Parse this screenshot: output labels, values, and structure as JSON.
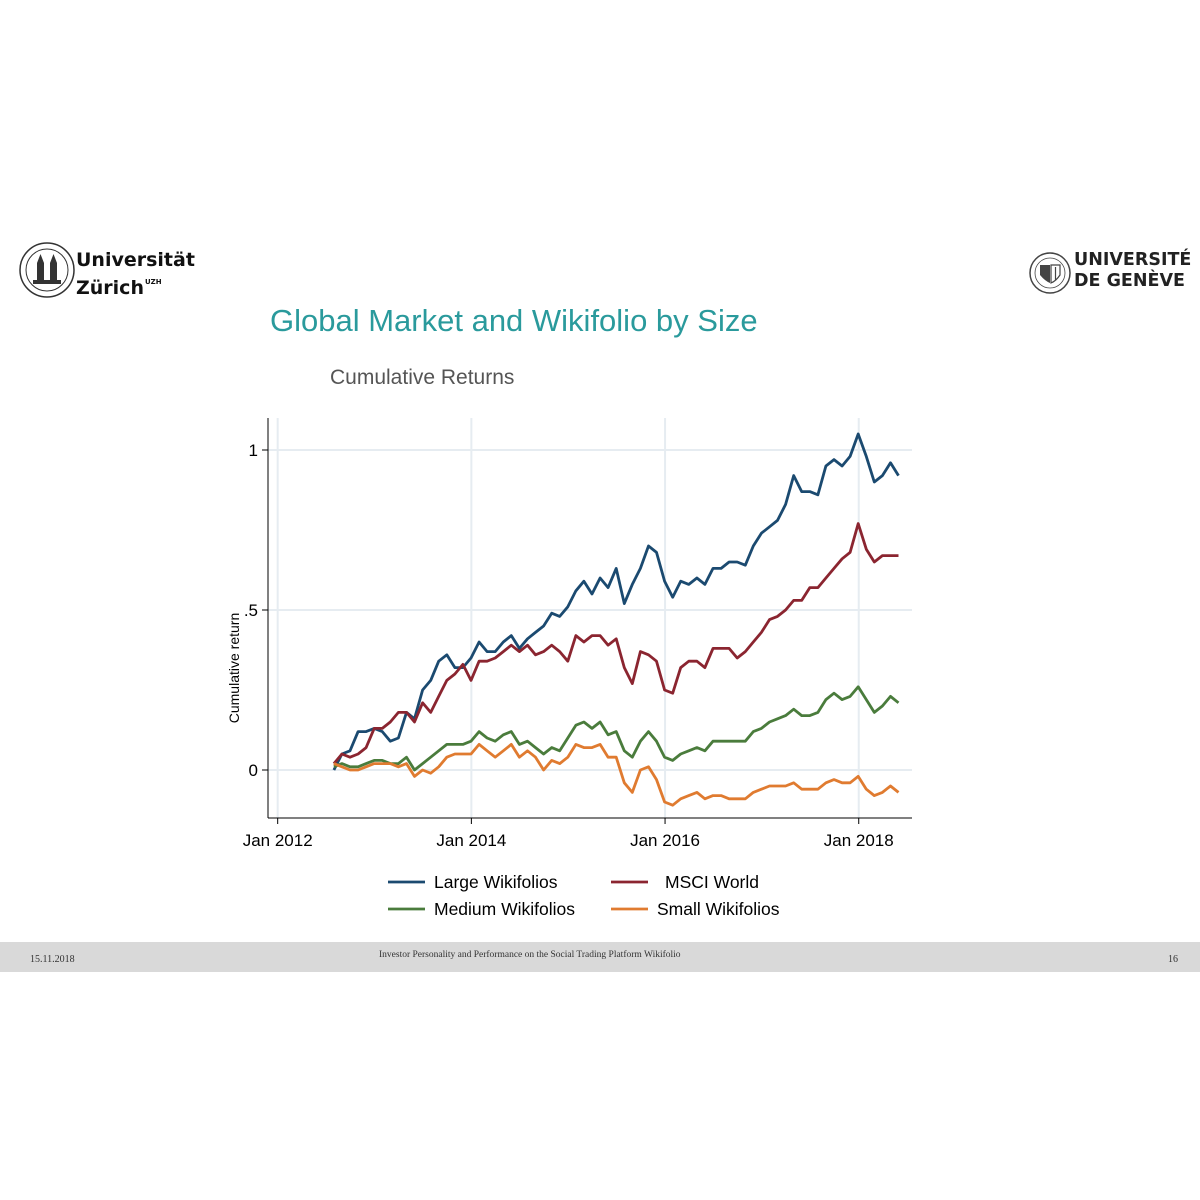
{
  "logos": {
    "left": {
      "line1": "Universität",
      "line2": "Zürich",
      "superscript": "UZH"
    },
    "right": {
      "line1": "UNIVERSITÉ",
      "line2": "DE GENÈVE"
    }
  },
  "slide_title": "Global Market and Wikifolio by Size",
  "footer": {
    "date": "15.11.2018",
    "title": "Investor Personality and Performance on the Social Trading Platform Wikifolio",
    "page": "16"
  },
  "chart_data": {
    "type": "line",
    "title": "Cumulative Returns",
    "xlabel": "",
    "ylabel": "Cumulative return",
    "xlim": [
      2011.9,
      2018.55
    ],
    "ylim": [
      -0.15,
      1.1
    ],
    "x_ticks": [
      2012,
      2014,
      2016,
      2018
    ],
    "x_tick_labels": [
      "Jan 2012",
      "Jan 2014",
      "Jan 2016",
      "Jan 2018"
    ],
    "y_ticks": [
      0,
      0.5,
      1
    ],
    "y_tick_labels": [
      "0",
      ".5",
      "1"
    ],
    "grid": true,
    "legend_position": "bottom",
    "x_start": 2012.58,
    "x_step": 0.0833,
    "series": [
      {
        "name": "Large Wikifolios",
        "color": "#1b4a70",
        "values": [
          0.0,
          0.05,
          0.06,
          0.12,
          0.12,
          0.13,
          0.12,
          0.09,
          0.1,
          0.18,
          0.16,
          0.25,
          0.28,
          0.34,
          0.36,
          0.32,
          0.32,
          0.35,
          0.4,
          0.37,
          0.37,
          0.4,
          0.42,
          0.38,
          0.41,
          0.43,
          0.45,
          0.49,
          0.48,
          0.51,
          0.56,
          0.59,
          0.55,
          0.6,
          0.57,
          0.63,
          0.52,
          0.58,
          0.63,
          0.7,
          0.68,
          0.59,
          0.54,
          0.59,
          0.58,
          0.6,
          0.58,
          0.63,
          0.63,
          0.65,
          0.65,
          0.64,
          0.7,
          0.74,
          0.76,
          0.78,
          0.83,
          0.92,
          0.87,
          0.87,
          0.86,
          0.95,
          0.97,
          0.95,
          0.98,
          1.05,
          0.98,
          0.9,
          0.92,
          0.96,
          0.92
        ]
      },
      {
        "name": "MSCI World",
        "color": "#8b2530",
        "values": [
          0.02,
          0.05,
          0.04,
          0.05,
          0.07,
          0.13,
          0.13,
          0.15,
          0.18,
          0.18,
          0.15,
          0.21,
          0.18,
          0.23,
          0.28,
          0.3,
          0.33,
          0.28,
          0.34,
          0.34,
          0.35,
          0.37,
          0.39,
          0.37,
          0.39,
          0.36,
          0.37,
          0.39,
          0.37,
          0.34,
          0.42,
          0.4,
          0.42,
          0.42,
          0.39,
          0.41,
          0.32,
          0.27,
          0.37,
          0.36,
          0.34,
          0.25,
          0.24,
          0.32,
          0.34,
          0.34,
          0.32,
          0.38,
          0.38,
          0.38,
          0.35,
          0.37,
          0.4,
          0.43,
          0.47,
          0.48,
          0.5,
          0.53,
          0.53,
          0.57,
          0.57,
          0.6,
          0.63,
          0.66,
          0.68,
          0.77,
          0.69,
          0.65,
          0.67,
          0.67,
          0.67
        ]
      },
      {
        "name": "Medium Wikifolios",
        "color": "#4a7c3c",
        "values": [
          0.01,
          0.02,
          0.01,
          0.01,
          0.02,
          0.03,
          0.03,
          0.02,
          0.02,
          0.04,
          0.0,
          0.02,
          0.04,
          0.06,
          0.08,
          0.08,
          0.08,
          0.09,
          0.12,
          0.1,
          0.09,
          0.11,
          0.12,
          0.08,
          0.09,
          0.07,
          0.05,
          0.07,
          0.06,
          0.1,
          0.14,
          0.15,
          0.13,
          0.15,
          0.11,
          0.12,
          0.06,
          0.04,
          0.09,
          0.12,
          0.09,
          0.04,
          0.03,
          0.05,
          0.06,
          0.07,
          0.06,
          0.09,
          0.09,
          0.09,
          0.09,
          0.09,
          0.12,
          0.13,
          0.15,
          0.16,
          0.17,
          0.19,
          0.17,
          0.17,
          0.18,
          0.22,
          0.24,
          0.22,
          0.23,
          0.26,
          0.22,
          0.18,
          0.2,
          0.23,
          0.21
        ]
      },
      {
        "name": "Small Wikifolios",
        "color": "#e07b30",
        "values": [
          0.02,
          0.01,
          0.0,
          0.0,
          0.01,
          0.02,
          0.02,
          0.02,
          0.01,
          0.02,
          -0.02,
          0.0,
          -0.01,
          0.01,
          0.04,
          0.05,
          0.05,
          0.05,
          0.08,
          0.06,
          0.04,
          0.06,
          0.08,
          0.04,
          0.06,
          0.04,
          0.0,
          0.03,
          0.02,
          0.04,
          0.08,
          0.07,
          0.07,
          0.08,
          0.04,
          0.04,
          -0.04,
          -0.07,
          0.0,
          0.01,
          -0.03,
          -0.1,
          -0.11,
          -0.09,
          -0.08,
          -0.07,
          -0.09,
          -0.08,
          -0.08,
          -0.09,
          -0.09,
          -0.09,
          -0.07,
          -0.06,
          -0.05,
          -0.05,
          -0.05,
          -0.04,
          -0.06,
          -0.06,
          -0.06,
          -0.04,
          -0.03,
          -0.04,
          -0.04,
          -0.02,
          -0.06,
          -0.08,
          -0.07,
          -0.05,
          -0.07
        ]
      }
    ]
  }
}
